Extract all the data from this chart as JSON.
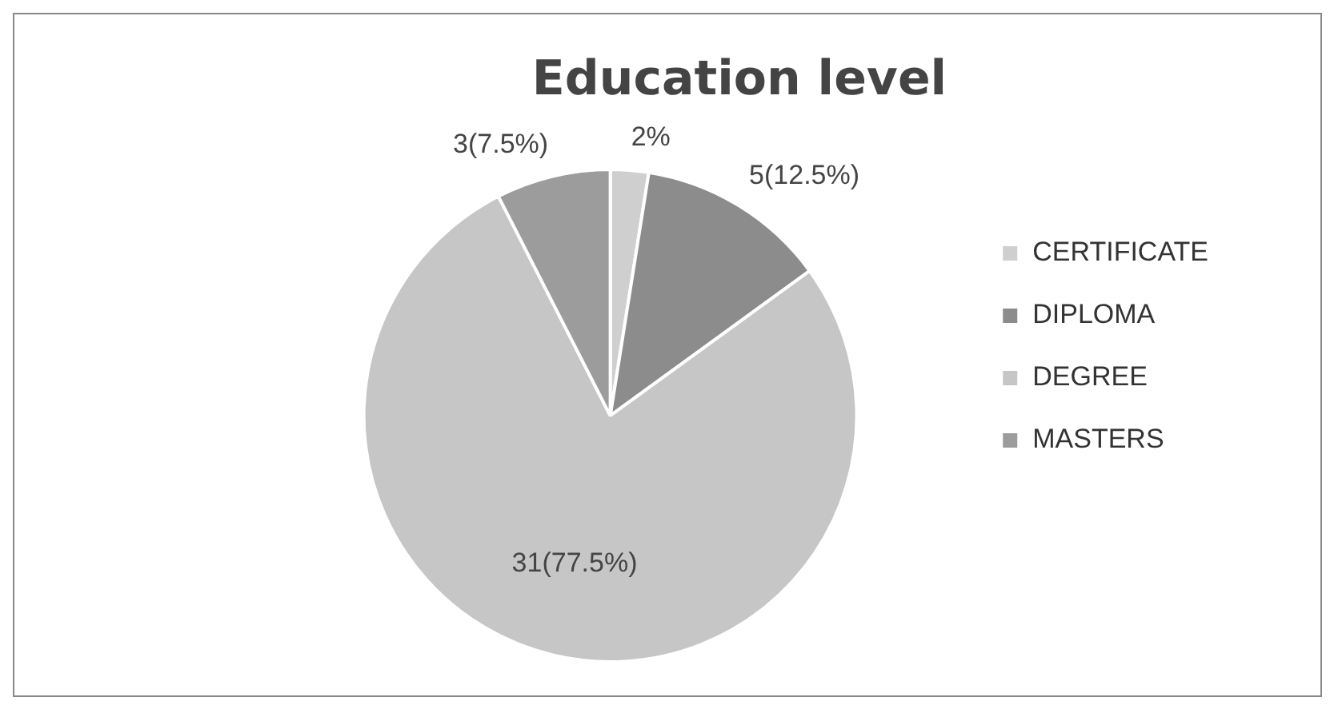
{
  "chart_data": {
    "type": "pie",
    "title": "Education level",
    "categories": [
      "CERTIFICATE",
      "DIPLOMA",
      "DEGREE",
      "MASTERS"
    ],
    "values": [
      2.5,
      12.5,
      77.5,
      7.5
    ],
    "value_labels": [
      "2%",
      "5(12.5%)",
      "31(77.5%)",
      "3(7.5%)"
    ],
    "colors": [
      "#cfcfcf",
      "#8c8c8c",
      "#c6c6c6",
      "#9c9c9c"
    ],
    "legend": "right"
  }
}
